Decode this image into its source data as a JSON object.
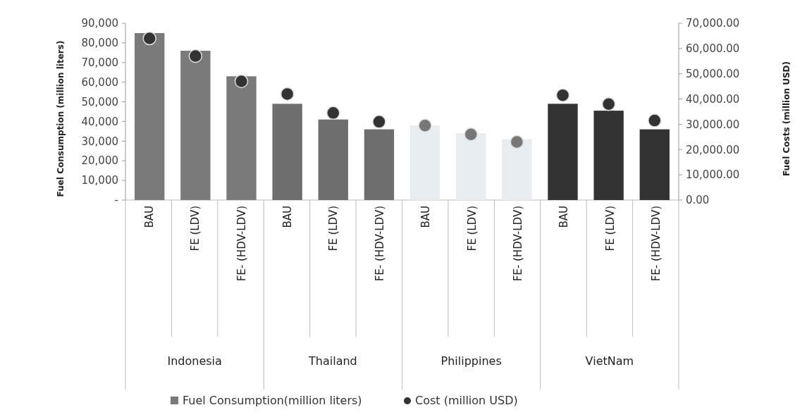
{
  "chart_data": {
    "type": "bar",
    "ylabel": "Fuel Consumption (million liters)",
    "y2label": "Fuel Costs (million USD)",
    "categories": [
      "BAU",
      "FE (LDV)",
      "FE- (HDV-LDV)",
      "BAU",
      "FE (LDV)",
      "FE- (HDV-LDV)",
      "BAU",
      "FE (LDV)",
      "FE- (HDV-LDV)",
      "BAU",
      "FE (LDV)",
      "FE- (HDV-LDV)"
    ],
    "series": [
      {
        "name": "Fuel Consumption(million liters)",
        "color": "#7a7a7a",
        "colors": [
          "#7a7a7a",
          "#7a7a7a",
          "#7a7a7a",
          "#6e6e6e",
          "#6e6e6e",
          "#6e6e6e",
          "#e8edf1",
          "#e8edf1",
          "#e8edf1",
          "#333333",
          "#333333",
          "#333333"
        ],
        "values": [
          85000,
          76000,
          63000,
          49000,
          41000,
          36000,
          38000,
          34000,
          31000,
          49000,
          45500,
          36000
        ]
      },
      {
        "name": "Cost (million USD)",
        "type": "scatter",
        "axis": "y2",
        "marker": "circle",
        "color": "#333333",
        "colors": [
          "#333333",
          "#333333",
          "#333333",
          "#333333",
          "#333333",
          "#333333",
          "#777777",
          "#777777",
          "#777777",
          "#333333",
          "#333333",
          "#333333"
        ],
        "values": [
          64000,
          57000,
          47000,
          42000,
          34500,
          31000,
          29500,
          26000,
          23000,
          41500,
          38000,
          31500
        ]
      }
    ],
    "ylim": [
      0,
      90000
    ],
    "yticks": [
      {
        "value": 0,
        "label": "-"
      },
      {
        "value": 10000,
        "label": "10,000"
      },
      {
        "value": 20000,
        "label": "20,000"
      },
      {
        "value": 30000,
        "label": "30,000"
      },
      {
        "value": 40000,
        "label": "40,000"
      },
      {
        "value": 50000,
        "label": "50,000"
      },
      {
        "value": 60000,
        "label": "60,000"
      },
      {
        "value": 70000,
        "label": "70,000"
      },
      {
        "value": 80000,
        "label": "80,000"
      },
      {
        "value": 90000,
        "label": "90,000"
      }
    ],
    "y2lim": [
      0,
      70000
    ],
    "y2ticks": [
      {
        "value": 0,
        "label": "0.00"
      },
      {
        "value": 10000,
        "label": "10,000.00"
      },
      {
        "value": 20000,
        "label": "20,000.00"
      },
      {
        "value": 30000,
        "label": "30,000.00"
      },
      {
        "value": 40000,
        "label": "40,000.00"
      },
      {
        "value": 50000,
        "label": "50,000.00"
      },
      {
        "value": 60000,
        "label": "60,000.00"
      },
      {
        "value": 70000,
        "label": "70,000.00"
      }
    ],
    "annotations": [
      "Indonesia",
      "Thailand",
      "Philippines",
      "VietNam"
    ],
    "legend": "bottom"
  }
}
